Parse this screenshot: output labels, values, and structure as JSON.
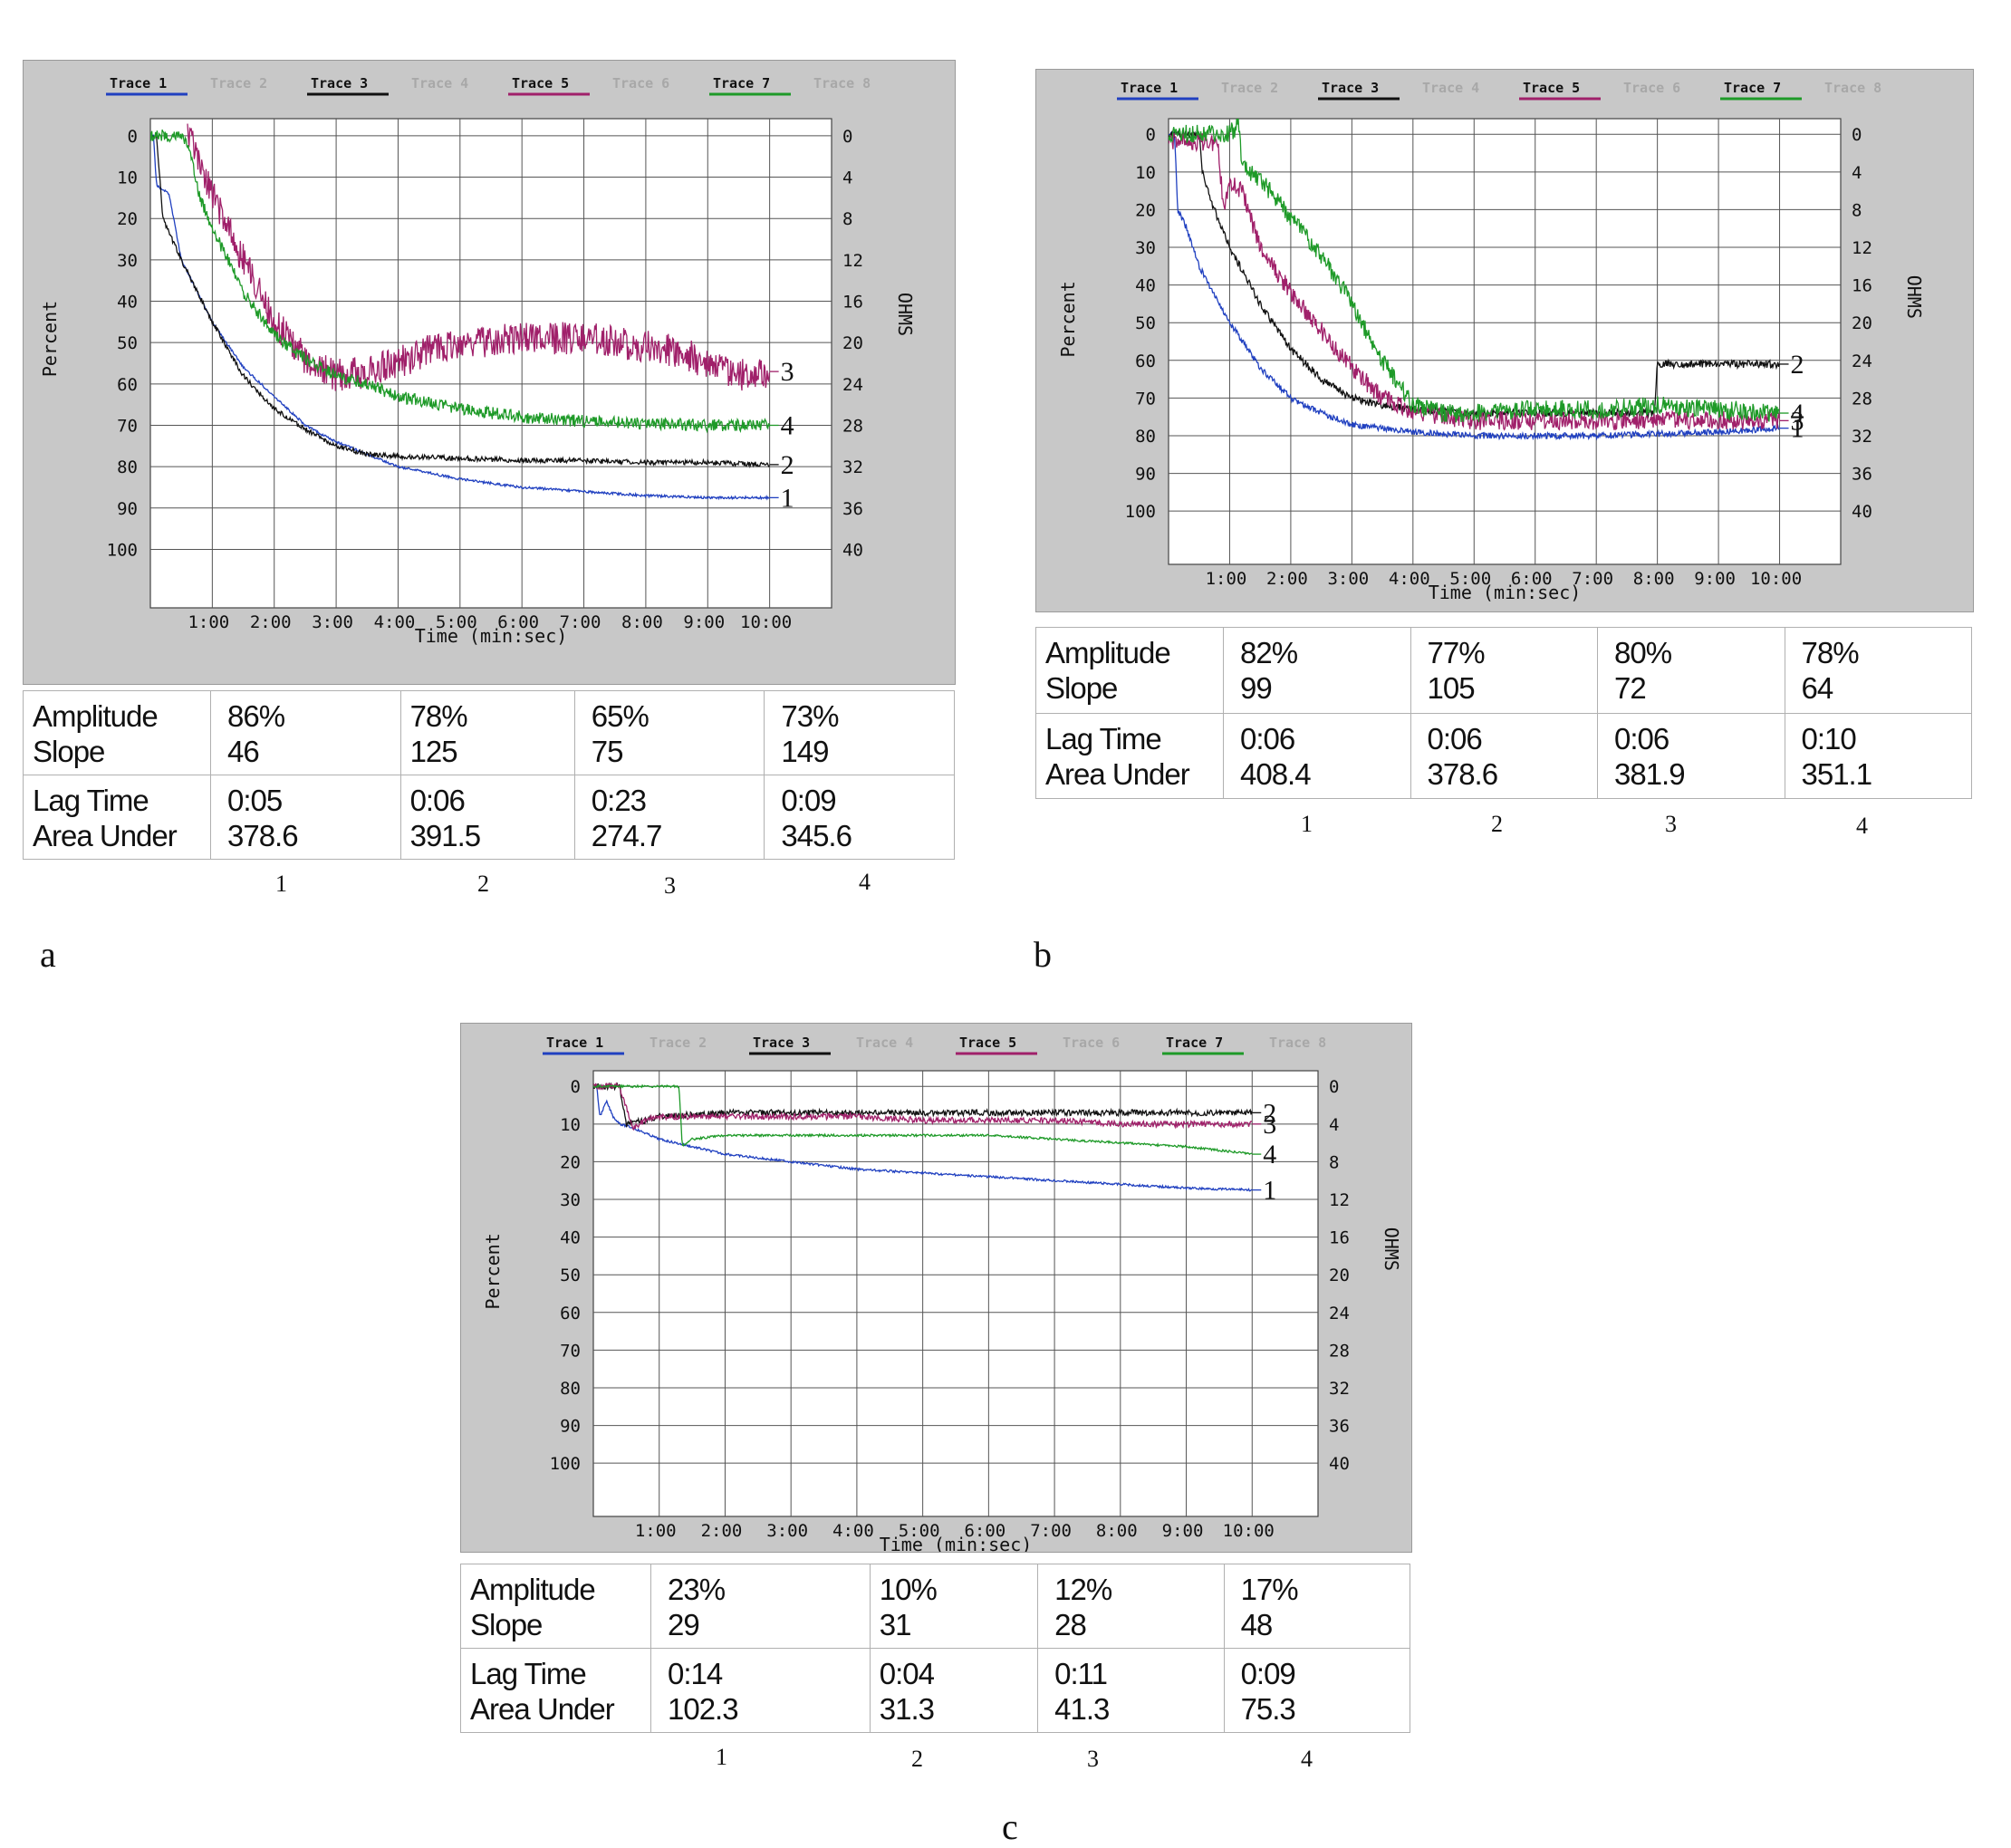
{
  "legend": [
    {
      "label": "Trace 1",
      "color": "#2040c0",
      "active": true
    },
    {
      "label": "Trace 2",
      "color": "#9a9a9a",
      "active": false
    },
    {
      "label": "Trace 3",
      "color": "#111111",
      "active": true
    },
    {
      "label": "Trace 4",
      "color": "#9a9a9a",
      "active": false
    },
    {
      "label": "Trace 5",
      "color": "#a0206a",
      "active": true
    },
    {
      "label": "Trace 6",
      "color": "#9a9a9a",
      "active": false
    },
    {
      "label": "Trace 7",
      "color": "#1e9a28",
      "active": true
    },
    {
      "label": "Trace 8",
      "color": "#9a9a9a",
      "active": false
    }
  ],
  "axes": {
    "ylabel": "Percent",
    "y2label": "OHMS",
    "xlabel": "Time (min:sec)",
    "y_ticks": [
      "0",
      "10",
      "20",
      "30",
      "40",
      "50",
      "60",
      "70",
      "80",
      "90",
      "100"
    ],
    "y2_ticks": [
      "0",
      "4",
      "8",
      "12",
      "16",
      "20",
      "24",
      "28",
      "32",
      "36",
      "40"
    ],
    "x_ticks": [
      "1:00",
      "2:00",
      "3:00",
      "4:00",
      "5:00",
      "6:00",
      "7:00",
      "8:00",
      "9:00",
      "10:00"
    ]
  },
  "table_labels": {
    "amplitude": "Amplitude",
    "slope": "Slope",
    "lag": "Lag Time",
    "area": "Area Under"
  },
  "panels": {
    "a": {
      "letter": "a",
      "column_numbers": [
        "1",
        "2",
        "3",
        "4"
      ],
      "stats": [
        {
          "amplitude": "86%",
          "slope": "46",
          "lag": "0:05",
          "area": "378.6"
        },
        {
          "amplitude": "78%",
          "slope": "125",
          "lag": "0:06",
          "area": "391.5"
        },
        {
          "amplitude": "65%",
          "slope": "75",
          "lag": "0:23",
          "area": "274.7"
        },
        {
          "amplitude": "73%",
          "slope": "149",
          "lag": "0:09",
          "area": "345.6"
        }
      ]
    },
    "b": {
      "letter": "b",
      "column_numbers": [
        "1",
        "2",
        "3",
        "4"
      ],
      "stats": [
        {
          "amplitude": "82%",
          "slope": "99",
          "lag": "0:06",
          "area": "408.4"
        },
        {
          "amplitude": "77%",
          "slope": "105",
          "lag": "0:06",
          "area": "378.6"
        },
        {
          "amplitude": "80%",
          "slope": "72",
          "lag": "0:06",
          "area": "381.9"
        },
        {
          "amplitude": "78%",
          "slope": "64",
          "lag": "0:10",
          "area": "351.1"
        }
      ]
    },
    "c": {
      "letter": "c",
      "column_numbers": [
        "1",
        "2",
        "3",
        "4"
      ],
      "stats": [
        {
          "amplitude": "23%",
          "slope": "29",
          "lag": "0:14",
          "area": "102.3"
        },
        {
          "amplitude": "10%",
          "slope": "31",
          "lag": "0:04",
          "area": "31.3"
        },
        {
          "amplitude": "12%",
          "slope": "28",
          "lag": "0:11",
          "area": "41.3"
        },
        {
          "amplitude": "17%",
          "slope": "48",
          "lag": "0:09",
          "area": "75.3"
        }
      ]
    }
  },
  "chart_data": [
    {
      "panel": "a",
      "type": "line",
      "xlabel": "Time (min:sec)",
      "ylabel": "Percent",
      "y2label": "OHMS",
      "xlim": [
        0,
        11
      ],
      "ylim": [
        0,
        110
      ],
      "y_inverted": true,
      "grid": true,
      "legend_position": "top",
      "series": [
        {
          "name": "Trace 1",
          "callout": "1",
          "color": "#2040c0",
          "noise": 0.3,
          "points": [
            [
              0,
              0
            ],
            [
              0.05,
              0
            ],
            [
              0.1,
              12
            ],
            [
              0.3,
              14
            ],
            [
              0.5,
              30
            ],
            [
              1,
              45
            ],
            [
              1.5,
              56
            ],
            [
              2,
              63
            ],
            [
              2.5,
              70
            ],
            [
              3,
              74
            ],
            [
              3.5,
              77
            ],
            [
              4,
              80
            ],
            [
              5,
              83
            ],
            [
              6,
              85
            ],
            [
              7,
              86
            ],
            [
              8,
              87
            ],
            [
              9,
              87.5
            ],
            [
              10,
              87.5
            ]
          ]
        },
        {
          "name": "Trace 3",
          "callout": "2",
          "color": "#111111",
          "noise": 0.6,
          "points": [
            [
              0,
              0
            ],
            [
              0.1,
              0
            ],
            [
              0.2,
              20
            ],
            [
              0.5,
              30
            ],
            [
              1,
              45
            ],
            [
              1.5,
              58
            ],
            [
              2,
              66
            ],
            [
              2.5,
              71
            ],
            [
              3,
              75
            ],
            [
              3.5,
              77
            ],
            [
              4,
              77.5
            ],
            [
              5,
              78
            ],
            [
              6,
              78.5
            ],
            [
              7,
              78.5
            ],
            [
              8,
              79
            ],
            [
              9,
              79
            ],
            [
              10,
              79.5
            ]
          ]
        },
        {
          "name": "Trace 5",
          "callout": "3",
          "color": "#a0206a",
          "noise": 4,
          "points": [
            [
              0.6,
              0
            ],
            [
              0.7,
              2
            ],
            [
              0.85,
              10
            ],
            [
              1,
              14
            ],
            [
              1.5,
              30
            ],
            [
              2,
              45
            ],
            [
              2.5,
              54
            ],
            [
              3,
              58
            ],
            [
              3.5,
              57
            ],
            [
              4,
              55
            ],
            [
              4.5,
              52
            ],
            [
              5,
              50
            ],
            [
              6,
              49
            ],
            [
              7,
              49
            ],
            [
              8,
              51
            ],
            [
              8.5,
              52
            ],
            [
              9,
              55
            ],
            [
              9.5,
              58
            ],
            [
              10,
              57
            ]
          ]
        },
        {
          "name": "Trace 7",
          "callout": "4",
          "color": "#1e9a28",
          "noise": 1.5,
          "points": [
            [
              0,
              0
            ],
            [
              0.3,
              0
            ],
            [
              0.5,
              0
            ],
            [
              0.6,
              2
            ],
            [
              0.8,
              15
            ],
            [
              1,
              22
            ],
            [
              1.5,
              38
            ],
            [
              2,
              48
            ],
            [
              2.5,
              54
            ],
            [
              3,
              58
            ],
            [
              3.5,
              60
            ],
            [
              4,
              63
            ],
            [
              5,
              66
            ],
            [
              6,
              68
            ],
            [
              7,
              69
            ],
            [
              8,
              69.5
            ],
            [
              9,
              70
            ],
            [
              10,
              70
            ]
          ]
        }
      ]
    },
    {
      "panel": "b",
      "type": "line",
      "xlabel": "Time (min:sec)",
      "ylabel": "Percent",
      "y2label": "OHMS",
      "xlim": [
        0,
        11
      ],
      "ylim": [
        0,
        110
      ],
      "y_inverted": true,
      "grid": true,
      "legend_position": "top",
      "series": [
        {
          "name": "Trace 1",
          "callout": "1",
          "color": "#2040c0",
          "noise": 0.8,
          "points": [
            [
              0,
              0
            ],
            [
              0.1,
              0
            ],
            [
              0.15,
              20
            ],
            [
              0.3,
              25
            ],
            [
              0.5,
              35
            ],
            [
              1,
              50
            ],
            [
              1.5,
              62
            ],
            [
              2,
              70
            ],
            [
              2.5,
              74
            ],
            [
              3,
              77
            ],
            [
              4,
              79
            ],
            [
              5,
              80
            ],
            [
              6,
              80
            ],
            [
              7,
              80
            ],
            [
              8,
              79.5
            ],
            [
              9,
              79
            ],
            [
              10,
              78
            ]
          ]
        },
        {
          "name": "Trace 3",
          "callout": "2",
          "color": "#111111",
          "noise": 1,
          "points": [
            [
              0,
              0
            ],
            [
              0.5,
              0
            ],
            [
              0.55,
              10
            ],
            [
              0.7,
              18
            ],
            [
              1,
              30
            ],
            [
              1.5,
              45
            ],
            [
              2,
              57
            ],
            [
              2.5,
              65
            ],
            [
              3,
              70
            ],
            [
              3.5,
              72
            ],
            [
              4,
              73
            ],
            [
              5,
              74
            ],
            [
              6,
              74
            ],
            [
              7,
              74
            ],
            [
              7.95,
              74
            ],
            [
              8,
              61
            ],
            [
              9,
              61
            ],
            [
              10,
              61
            ]
          ]
        },
        {
          "name": "Trace 5",
          "callout": "3",
          "color": "#a0206a",
          "noise": 2.5,
          "points": [
            [
              0,
              2
            ],
            [
              0.8,
              2
            ],
            [
              0.9,
              20
            ],
            [
              1,
              12
            ],
            [
              1.2,
              15
            ],
            [
              1.5,
              30
            ],
            [
              2,
              42
            ],
            [
              2.5,
              52
            ],
            [
              2.9,
              60
            ],
            [
              3,
              62
            ],
            [
              3.5,
              70
            ],
            [
              4,
              74
            ],
            [
              5,
              76
            ],
            [
              6,
              76
            ],
            [
              7,
              76
            ],
            [
              8,
              76
            ],
            [
              9,
              76
            ],
            [
              10,
              76
            ]
          ]
        },
        {
          "name": "Trace 7",
          "callout": "4",
          "color": "#1e9a28",
          "noise": 2.5,
          "points": [
            [
              0,
              0
            ],
            [
              1,
              0
            ],
            [
              1.15,
              -3
            ],
            [
              1.2,
              8
            ],
            [
              1.5,
              12
            ],
            [
              2,
              22
            ],
            [
              2.5,
              32
            ],
            [
              3,
              45
            ],
            [
              3.5,
              60
            ],
            [
              4,
              72
            ],
            [
              4.5,
              74
            ],
            [
              5,
              74
            ],
            [
              6,
              73
            ],
            [
              7,
              73
            ],
            [
              8,
              72
            ],
            [
              9,
              73
            ],
            [
              10,
              74
            ]
          ]
        }
      ]
    },
    {
      "panel": "c",
      "type": "line",
      "xlabel": "Time (min:sec)",
      "ylabel": "Percent",
      "y2label": "OHMS",
      "xlim": [
        0,
        11
      ],
      "ylim": [
        0,
        110
      ],
      "y_inverted": true,
      "grid": true,
      "legend_position": "top",
      "series": [
        {
          "name": "Trace 1",
          "callout": "1",
          "color": "#2040c0",
          "noise": 0.3,
          "points": [
            [
              0,
              0
            ],
            [
              0.05,
              0
            ],
            [
              0.1,
              8
            ],
            [
              0.2,
              4
            ],
            [
              0.3,
              8
            ],
            [
              0.4,
              10
            ],
            [
              0.6,
              11
            ],
            [
              1,
              14
            ],
            [
              2,
              18
            ],
            [
              3,
              20
            ],
            [
              4,
              22
            ],
            [
              5,
              23
            ],
            [
              6,
              24
            ],
            [
              7,
              25
            ],
            [
              8,
              26
            ],
            [
              9,
              27
            ],
            [
              10,
              27.5
            ]
          ]
        },
        {
          "name": "Trace 3",
          "callout": "2",
          "color": "#111111",
          "noise": 0.8,
          "points": [
            [
              0,
              0
            ],
            [
              0.4,
              0
            ],
            [
              0.5,
              10
            ],
            [
              0.8,
              9
            ],
            [
              1,
              8
            ],
            [
              2,
              7
            ],
            [
              3,
              7
            ],
            [
              4,
              7
            ],
            [
              5,
              7
            ],
            [
              6,
              7
            ],
            [
              7,
              7
            ],
            [
              8,
              7
            ],
            [
              9,
              7
            ],
            [
              10,
              7
            ]
          ]
        },
        {
          "name": "Trace 5",
          "callout": "3",
          "color": "#a0206a",
          "noise": 0.8,
          "points": [
            [
              0,
              0
            ],
            [
              0.4,
              0
            ],
            [
              0.6,
              11
            ],
            [
              0.8,
              9
            ],
            [
              1,
              8
            ],
            [
              2,
              8
            ],
            [
              3,
              8
            ],
            [
              4,
              8
            ],
            [
              5,
              9
            ],
            [
              6,
              9
            ],
            [
              7,
              9
            ],
            [
              8,
              10
            ],
            [
              9,
              10
            ],
            [
              10,
              10
            ]
          ]
        },
        {
          "name": "Trace 7",
          "callout": "4",
          "color": "#1e9a28",
          "noise": 0.3,
          "points": [
            [
              0,
              0
            ],
            [
              1.3,
              0
            ],
            [
              1.35,
              16
            ],
            [
              1.5,
              14
            ],
            [
              2,
              13
            ],
            [
              3,
              13
            ],
            [
              4,
              13
            ],
            [
              5,
              13
            ],
            [
              6,
              13
            ],
            [
              7,
              14
            ],
            [
              8,
              15
            ],
            [
              9,
              16
            ],
            [
              10,
              18
            ]
          ]
        }
      ]
    }
  ]
}
